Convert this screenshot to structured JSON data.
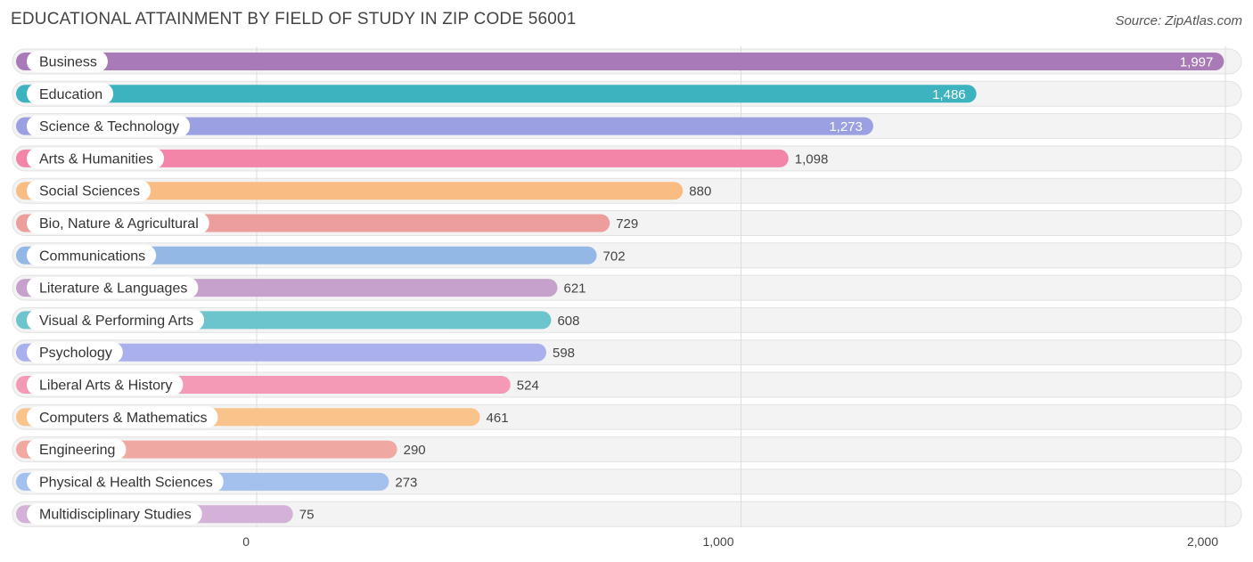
{
  "chart_data": {
    "type": "bar",
    "orientation": "horizontal",
    "title": "EDUCATIONAL ATTAINMENT BY FIELD OF STUDY IN ZIP CODE 56001",
    "source": "Source: ZipAtlas.com",
    "categories": [
      "Business",
      "Education",
      "Science & Technology",
      "Arts & Humanities",
      "Social Sciences",
      "Bio, Nature & Agricultural",
      "Communications",
      "Literature & Languages",
      "Visual & Performing Arts",
      "Psychology",
      "Liberal Arts & History",
      "Computers & Mathematics",
      "Engineering",
      "Physical & Health Sciences",
      "Multidisciplinary Studies"
    ],
    "values": [
      1997,
      1486,
      1273,
      1098,
      880,
      729,
      702,
      621,
      608,
      598,
      524,
      461,
      290,
      273,
      75
    ],
    "value_labels": [
      "1,997",
      "1,486",
      "1,273",
      "1,098",
      "880",
      "729",
      "702",
      "621",
      "608",
      "598",
      "524",
      "461",
      "290",
      "273",
      "75"
    ],
    "colors": [
      "#a87bb8",
      "#3db3bf",
      "#9aa0e2",
      "#f285a8",
      "#f9bd84",
      "#ec9e9c",
      "#94b8e6",
      "#c6a1cc",
      "#6cc4cc",
      "#aab0ec",
      "#f59ab6",
      "#f9c48c",
      "#f0a9a2",
      "#a3c1ec",
      "#d4b2d8"
    ],
    "xlim": [
      0,
      2000
    ],
    "xticks": [
      0,
      1000,
      2000
    ],
    "xtick_labels": [
      "0",
      "1,000",
      "2,000"
    ],
    "grid": true
  }
}
